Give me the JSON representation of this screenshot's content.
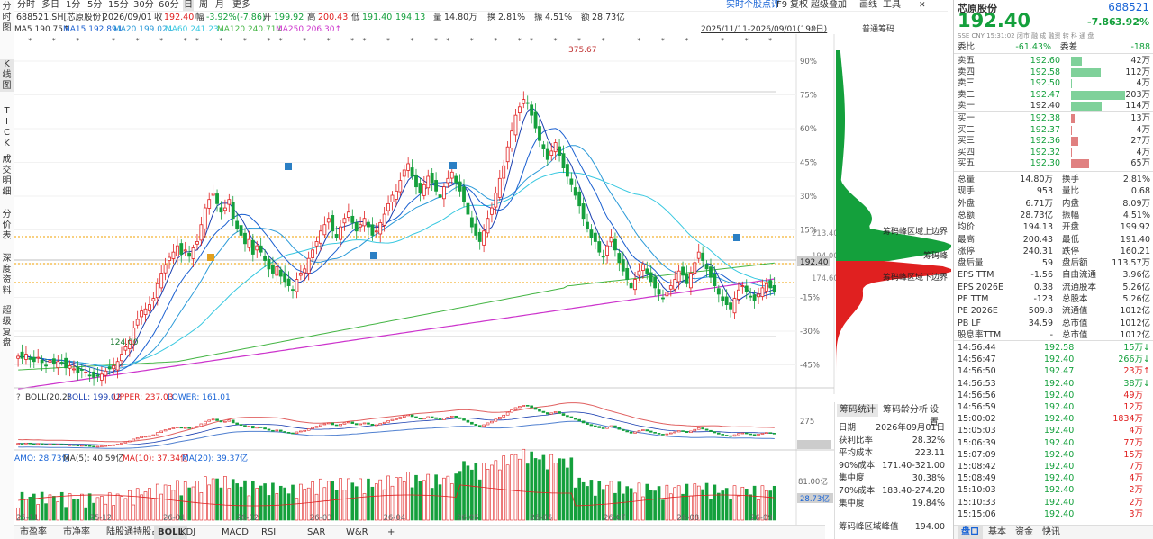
{
  "left_tabs": [
    {
      "label": "分\n时\n图"
    },
    {
      "label": "K\n线\n图"
    },
    {
      "label": "T\nI\nC\nK"
    },
    {
      "label": "成\n交\n明\n细"
    },
    {
      "label": "分\n价\n表"
    },
    {
      "label": "深\n度\n资\n料"
    },
    {
      "label": "超\n级\n复\n盘"
    }
  ],
  "periods": [
    "分时",
    "多日",
    "1分",
    "5分",
    "15分",
    "30分",
    "60分",
    "日",
    "周",
    "月",
    "更多"
  ],
  "active_period": "日",
  "topbar_right": {
    "feedback": "实时个股点评",
    "f9": "F9",
    "copy_date": "复权",
    "stack": "超级叠加",
    "draw": "画线",
    "tools": "工具"
  },
  "info": {
    "code": "688521.SH[芯原股份]",
    "date": "2026/09/01",
    "close_label": "收",
    "close": "192.40",
    "amp_label": "幅",
    "chg": "-3.92%(-7.86)",
    "open_label": "开",
    "open": "199.92",
    "high_label": "高",
    "high": "200.43",
    "low_label": "低",
    "low": "191.40",
    "avg": "194.13",
    "vol_label": "量",
    "vol": "14.80万",
    "turn_label": "换",
    "turn": "2.81%",
    "swing_label": "振",
    "swing": "4.51%",
    "amount_label": "额",
    "amount": "28.73亿"
  },
  "ma": {
    "ma5": "MA5 190.75↑",
    "ma15": "MA15 192.89↓",
    "ma20": "MA20 199.02↓",
    "ma60": "MA60 241.23↓",
    "ma120": "MA120 240.71↓",
    "ma250": "MA250 206.30↑",
    "range": "2025/11/11-2026/09/01(198日)",
    "chip_mode": "普通筹码"
  },
  "colors": {
    "up": "#e02020",
    "down": "#14a03c",
    "ma5": "#1a3fb0",
    "ma15": "#1a5fd0",
    "ma20": "#2b9ad8",
    "ma60": "#38c8e0",
    "ma120": "#44b544",
    "ma250": "#cc33cc"
  },
  "chart_data": {
    "type": "candlestick",
    "x_labels": [
      "25-11",
      "25-12",
      "26-01",
      "26-02",
      "26-03",
      "26-04",
      "26-05",
      "26-06",
      "26-07",
      "26-08",
      "26-09"
    ],
    "y_pct_ticks": [
      "90%",
      "75%",
      "60%",
      "45%",
      "30%",
      "15%",
      "0%",
      "-15%",
      "-30%",
      "-45%"
    ],
    "price_marks": {
      "high_label": "375.67",
      "low_label": "124.00",
      "last": "192.40",
      "upper_bound": "213.40",
      "base": "194.00",
      "lower_bound": "174.60"
    },
    "closes": [
      131,
      129,
      133,
      128,
      126,
      130,
      125,
      122,
      127,
      124,
      126,
      125,
      120,
      122,
      119,
      115,
      118,
      116,
      113,
      111,
      112,
      114,
      117,
      119,
      122,
      126,
      133,
      140,
      146,
      158,
      166,
      174,
      176,
      180,
      186,
      200,
      210,
      218,
      225,
      230,
      236,
      228,
      232,
      226,
      234,
      240,
      256,
      272,
      280,
      286,
      276,
      268,
      272,
      280,
      262,
      252,
      246,
      238,
      242,
      228,
      236,
      230,
      222,
      214,
      210,
      216,
      207,
      202,
      198,
      194,
      204,
      210,
      214,
      224,
      232,
      240,
      250,
      256,
      262,
      250,
      244,
      254,
      262,
      268,
      258,
      250,
      256,
      262,
      254,
      246,
      250,
      258,
      266,
      276,
      284,
      288,
      298,
      308,
      314,
      302,
      292,
      286,
      294,
      302,
      296,
      288,
      282,
      292,
      300,
      306,
      296,
      288,
      278,
      266,
      254,
      246,
      240,
      250,
      262,
      272,
      286,
      300,
      312,
      330,
      345,
      360,
      368,
      375,
      372,
      360,
      348,
      336,
      328,
      318,
      326,
      334,
      322,
      310,
      302,
      294,
      284,
      274,
      262,
      252,
      244,
      240,
      230,
      226,
      236,
      244,
      232,
      220,
      212,
      204,
      196,
      204,
      212,
      218,
      210,
      202,
      196,
      190,
      186,
      192,
      198,
      204,
      212,
      208,
      200,
      210,
      220,
      230,
      222,
      214,
      206,
      198,
      190,
      184,
      180,
      176,
      186,
      194,
      198,
      192,
      188,
      184,
      190,
      196,
      200,
      196,
      192
    ]
  },
  "boll": {
    "label": "BOLL(20,2)",
    "mid": "BOLL: 199.02",
    "upper": "UPPER: 237.03",
    "lower": "LOWER: 161.01",
    "tick": "275"
  },
  "amo": {
    "label": "AMO: 28.73亿",
    "ma5": "MA(5): 40.59亿",
    "ma10": "MA(10): 37.34亿",
    "ma20": "MA(20): 39.37亿",
    "tick": "81.00亿",
    "last": "28.73亿"
  },
  "chip_labels": {
    "upper": "筹码峰区域上边界",
    "peak": "筹码峰",
    "lower": "筹码峰区域下边界"
  },
  "chip_panel": {
    "tabs": [
      "筹码统计",
      "筹码龄分析",
      "设置"
    ],
    "rows": [
      {
        "k": "日期",
        "v": "2026年09月01日"
      },
      {
        "k": "获利比率",
        "v": "28.32%"
      },
      {
        "k": "平均成本",
        "v": "223.11"
      },
      {
        "k": "90%成本",
        "v": "171.40-321.00"
      },
      {
        "k": "集中度",
        "v": "30.38%"
      },
      {
        "k": "70%成本",
        "v": "183.40-274.20"
      },
      {
        "k": "集中度",
        "v": "19.84%"
      }
    ],
    "peak_k": "筹码峰区域峰值",
    "peak_v": "194.00"
  },
  "bottom_tabs": [
    "市盈率",
    "市净率",
    "陆股通持股占比",
    "BOLL",
    "KDJ",
    "MACD",
    "RSI",
    "SAR",
    "W&R",
    "+"
  ],
  "active_bottom": "BOLL",
  "quote": {
    "name": "芯原股份",
    "code": "688521",
    "price": "192.40",
    "chg": "-7.86",
    "pct": "-3.92%",
    "meta": "SSE  CNY  15:31:02  闭市 融 成 融资 转 科 通 盘",
    "webi_k": "委比",
    "webi_v": "-61.43%",
    "weicha_k": "委差",
    "weicha_v": "-188",
    "asks": [
      {
        "k": "卖五",
        "p": "192.60",
        "v": "42万",
        "w": 0.2
      },
      {
        "k": "卖四",
        "p": "192.58",
        "v": "112万",
        "w": 0.55
      },
      {
        "k": "卖三",
        "p": "192.50",
        "v": "4万",
        "w": 0.02
      },
      {
        "k": "卖二",
        "p": "192.47",
        "v": "203万",
        "w": 1.0
      },
      {
        "k": "卖一",
        "p": "192.40",
        "v": "114万",
        "w": 0.56
      }
    ],
    "bids": [
      {
        "k": "买一",
        "p": "192.38",
        "v": "13万",
        "w": 0.07
      },
      {
        "k": "买二",
        "p": "192.37",
        "v": "4万",
        "w": 0.02
      },
      {
        "k": "买三",
        "p": "192.36",
        "v": "27万",
        "w": 0.14
      },
      {
        "k": "买四",
        "p": "192.32",
        "v": "4万",
        "w": 0.02
      },
      {
        "k": "买五",
        "p": "192.30",
        "v": "65万",
        "w": 0.33
      }
    ],
    "stats": [
      {
        "k1": "总量",
        "v1": "14.80万",
        "k2": "换手",
        "v2": "2.81%"
      },
      {
        "k1": "现手",
        "v1": "953",
        "k2": "量比",
        "v2": "0.68"
      },
      {
        "k1": "外盘",
        "v1": "6.71万",
        "k2": "内盘",
        "v2": "8.09万"
      },
      {
        "k1": "总额",
        "v1": "28.73亿",
        "k2": "振幅",
        "v2": "4.51%"
      },
      {
        "k1": "均价",
        "v1": "194.13",
        "k2": "开盘",
        "v2": "199.92"
      },
      {
        "k1": "最高",
        "v1": "200.43",
        "k2": "最低",
        "v2": "191.40"
      },
      {
        "k1": "涨停",
        "v1": "240.31",
        "k2": "跌停",
        "v2": "160.21"
      },
      {
        "k1": "盘后量",
        "v1": "59",
        "k2": "盘后额",
        "v2": "113.57万"
      },
      {
        "k1": "EPS TTM",
        "v1": "-1.56",
        "k2": "自由流通",
        "v2": "3.96亿"
      },
      {
        "k1": "EPS 2026E",
        "v1": "0.38",
        "k2": "流通股本",
        "v2": "5.26亿"
      },
      {
        "k1": "PE TTM",
        "v1": "-123",
        "k2": "总股本",
        "v2": "5.26亿"
      },
      {
        "k1": "PE 2026E",
        "v1": "509.8",
        "k2": "流通值",
        "v2": "1012亿"
      },
      {
        "k1": "PB LF",
        "v1": "34.59",
        "k2": "总市值",
        "v2": "1012亿"
      },
      {
        "k1": "股息率TTM",
        "v1": "-",
        "k2": "总市值",
        "v2": "1012亿"
      }
    ],
    "ticks": [
      {
        "t": "14:56:44",
        "p": "192.58",
        "v": "15万",
        "d": "down"
      },
      {
        "t": "14:56:47",
        "p": "192.40",
        "v": "266万",
        "d": "down"
      },
      {
        "t": "14:56:50",
        "p": "192.47",
        "v": "23万",
        "d": "up"
      },
      {
        "t": "14:56:53",
        "p": "192.40",
        "v": "38万",
        "d": "down"
      },
      {
        "t": "14:56:56",
        "p": "192.40",
        "v": "49万",
        "d": ""
      },
      {
        "t": "14:56:59",
        "p": "192.40",
        "v": "12万",
        "d": ""
      },
      {
        "t": "15:00:02",
        "p": "192.40",
        "v": "1834万",
        "d": ""
      },
      {
        "t": "15:05:03",
        "p": "192.40",
        "v": "4万",
        "d": ""
      },
      {
        "t": "15:06:39",
        "p": "192.40",
        "v": "77万",
        "d": ""
      },
      {
        "t": "15:07:09",
        "p": "192.40",
        "v": "15万",
        "d": ""
      },
      {
        "t": "15:08:42",
        "p": "192.40",
        "v": "7万",
        "d": ""
      },
      {
        "t": "15:08:49",
        "p": "192.40",
        "v": "4万",
        "d": ""
      },
      {
        "t": "15:10:03",
        "p": "192.40",
        "v": "2万",
        "d": ""
      },
      {
        "t": "15:10:33",
        "p": "192.40",
        "v": "2万",
        "d": ""
      },
      {
        "t": "15:15:06",
        "p": "192.40",
        "v": "3万",
        "d": ""
      }
    ],
    "tabs": [
      "盘口",
      "基本",
      "资金",
      "快讯"
    ],
    "active_tab": "盘口"
  }
}
